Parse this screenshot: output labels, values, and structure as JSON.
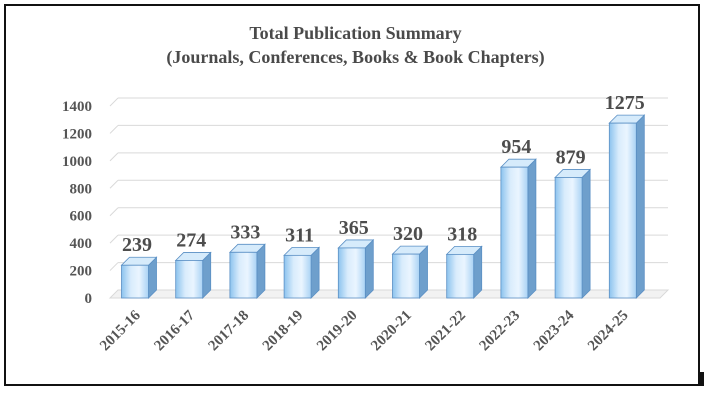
{
  "chart_data": {
    "type": "bar",
    "title": "Total Publication Summary",
    "subtitle": "(Journals, Conferences, Books & Book Chapters)",
    "xlabel": "",
    "ylabel": "",
    "categories": [
      "2015-16",
      "2016-17",
      "2017-18",
      "2018-19",
      "2019-20",
      "2020-21",
      "2021-22",
      "2022-23",
      "2023-24",
      "2024-25"
    ],
    "values": [
      239,
      274,
      333,
      311,
      365,
      320,
      318,
      954,
      879,
      1275
    ],
    "ylim": [
      0,
      1400
    ],
    "yticks": [
      0,
      200,
      400,
      600,
      800,
      1000,
      1200,
      1400
    ],
    "grid": true,
    "legend": "none",
    "colors": {
      "bar_light": "#e6f3ff",
      "bar_mid": "#b9dcf8",
      "bar_dark": "#8cc3ee",
      "bar_side": "#6e9fcc",
      "bar_top": "#d6ebfb",
      "bar_edge": "#5a8fc4",
      "grid": "#d9d9d9",
      "text": "#555555"
    }
  }
}
